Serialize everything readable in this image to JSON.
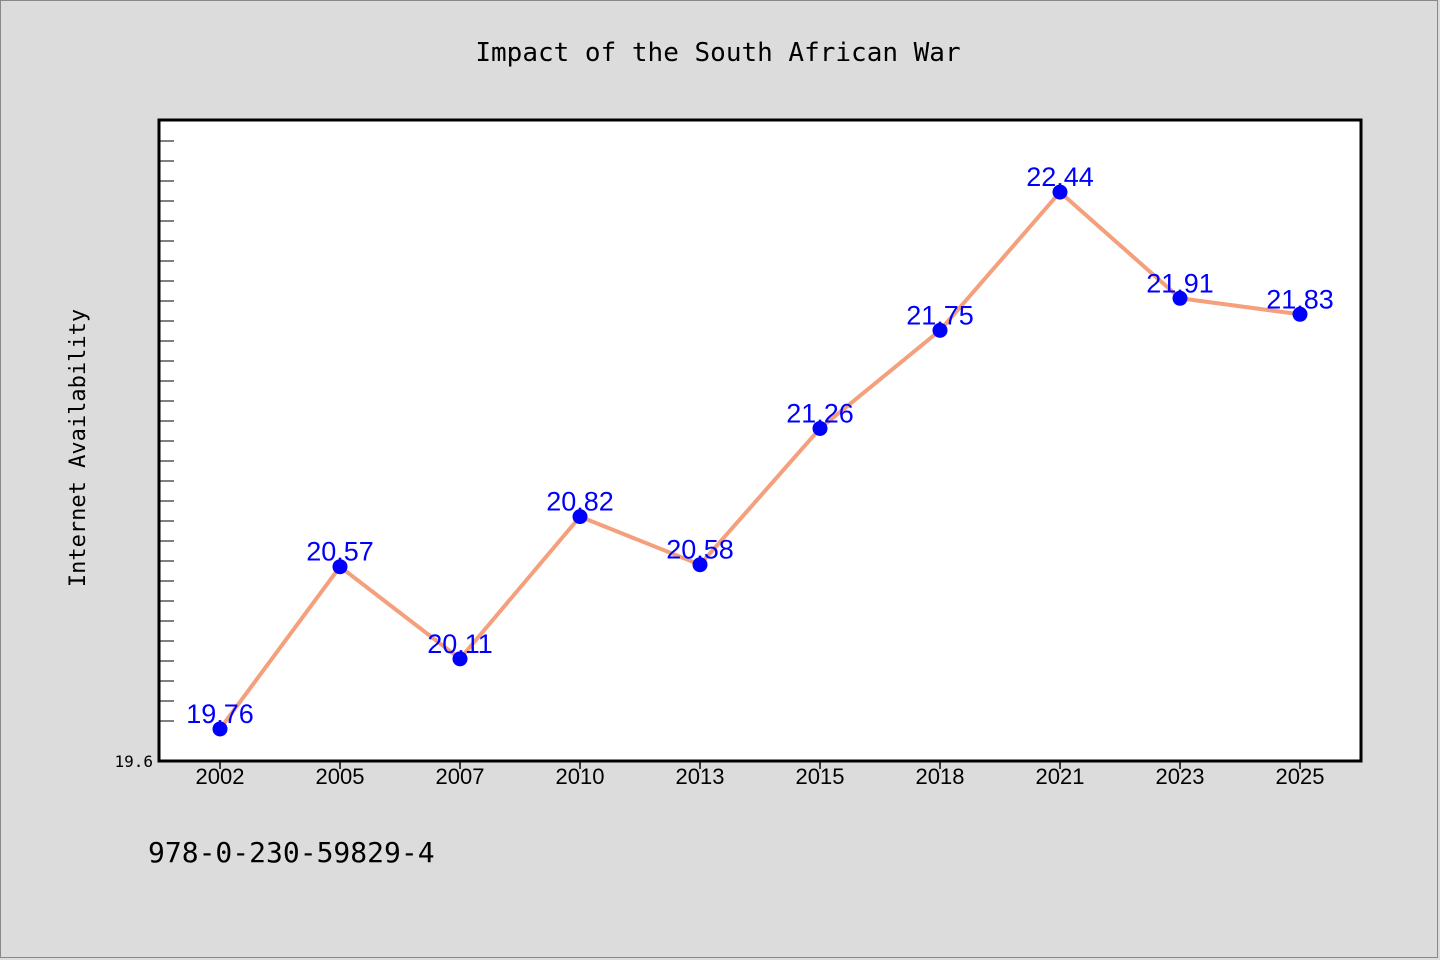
{
  "chart_data": {
    "type": "line",
    "title": "Impact of the South African War",
    "xlabel": "",
    "ylabel": "Internet Availability",
    "categories": [
      "2002",
      "2005",
      "2007",
      "2010",
      "2013",
      "2015",
      "2018",
      "2021",
      "2023",
      "2025"
    ],
    "series": [
      {
        "values": [
          19.76,
          20.57,
          20.11,
          20.82,
          20.58,
          21.26,
          21.75,
          22.44,
          21.91,
          21.83
        ],
        "color": "#f4a07c",
        "marker_color": "#0000ff"
      }
    ],
    "data_labels": [
      "19.76",
      "20.57",
      "20.11",
      "20.82",
      "20.58",
      "21.26",
      "21.75",
      "22.44",
      "21.91",
      "21.83"
    ],
    "yticks": [
      "19.6"
    ],
    "ylim": [
      19.6,
      22.8
    ],
    "grid": false,
    "legend": "none"
  },
  "footer": {
    "code": "978-0-230-59829-4"
  },
  "colors": {
    "background": "#dcdcdc",
    "plot_background": "#ffffff",
    "line": "#f4a07c",
    "marker": "#0000ff",
    "data_label": "#0000ff"
  }
}
